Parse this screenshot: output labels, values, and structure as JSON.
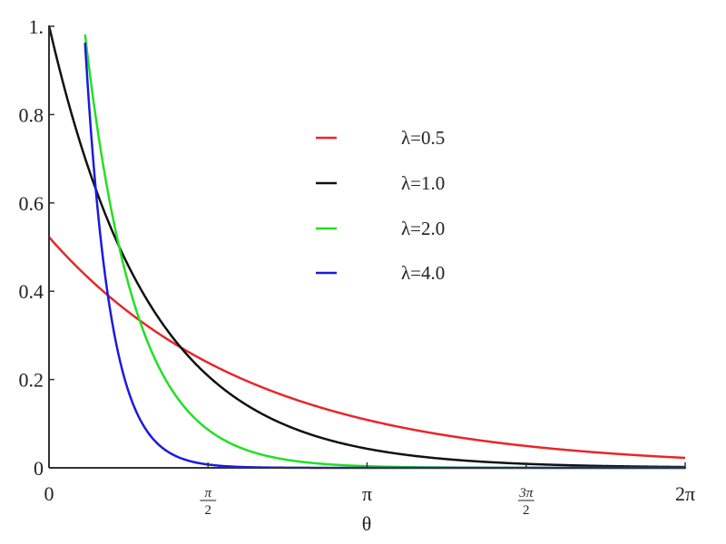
{
  "chart_data": {
    "type": "line",
    "title": "",
    "xlabel": "θ",
    "ylabel": "",
    "xlim": [
      0,
      6.2832
    ],
    "ylim": [
      0,
      1
    ],
    "grid": false,
    "legend_position": "upper-center",
    "x_ticks": [
      {
        "value": 0,
        "label": "0"
      },
      {
        "value": 1.5708,
        "label": "π/2",
        "num": "π",
        "den": "2"
      },
      {
        "value": 3.1416,
        "label": "π"
      },
      {
        "value": 4.7124,
        "label": "3π/2",
        "num": "3π",
        "den": "2"
      },
      {
        "value": 6.2832,
        "label": "2π"
      }
    ],
    "y_ticks": [
      {
        "value": 0,
        "label": "0"
      },
      {
        "value": 0.2,
        "label": "0.2"
      },
      {
        "value": 0.4,
        "label": "0.4"
      },
      {
        "value": 0.6,
        "label": "0.6"
      },
      {
        "value": 0.8,
        "label": "0.8"
      },
      {
        "value": 1.0,
        "label": "1."
      }
    ],
    "x": [
      0,
      0.3927,
      0.7854,
      1.1781,
      1.5708,
      1.9635,
      2.3562,
      2.7489,
      3.1416,
      3.5343,
      3.927,
      4.3197,
      4.7124,
      5.1051,
      5.4978,
      5.8905,
      6.2832
    ],
    "series": [
      {
        "name": "λ=0.5",
        "lambda": 0.5,
        "color": "#e8262a",
        "values": [
          0.523,
          0.428,
          0.351,
          0.287,
          0.235,
          0.193,
          0.158,
          0.129,
          0.106,
          0.087,
          0.071,
          0.058,
          0.048,
          0.039,
          0.032,
          0.026,
          0.023
        ]
      },
      {
        "name": "λ=1.0",
        "lambda": 1.0,
        "color": "#111111",
        "values": [
          1.0,
          0.677,
          0.458,
          0.309,
          0.209,
          0.141,
          0.095,
          0.064,
          0.043,
          0.029,
          0.02,
          0.013,
          0.009,
          0.006,
          0.004,
          0.003,
          0.002
        ]
      },
      {
        "name": "λ=2.0",
        "lambda": 2.0,
        "color": "#22e022",
        "values": [
          null,
          0.912,
          0.416,
          0.19,
          0.086,
          0.039,
          0.018,
          0.008,
          0.004,
          0.002,
          0.001,
          0.0,
          0.0,
          0.0,
          0.0,
          0.0,
          0.0
        ]
      },
      {
        "name": "λ=4.0",
        "lambda": 4.0,
        "color": "#1a1ae0",
        "values": [
          null,
          0.832,
          0.173,
          0.036,
          0.0075,
          0.0016,
          0.0003,
          0.0,
          0.0,
          0.0,
          0.0,
          0.0,
          0.0,
          0.0,
          0.0,
          0.0,
          0.0
        ]
      }
    ],
    "annotations": []
  },
  "legend": {
    "items": [
      {
        "label": "λ=0.5",
        "color": "#e8262a"
      },
      {
        "label": "λ=1.0",
        "color": "#111111"
      },
      {
        "label": "λ=2.0",
        "color": "#22e022"
      },
      {
        "label": "λ=4.0",
        "color": "#1a1ae0"
      }
    ]
  },
  "axis": {
    "x_label": "θ"
  }
}
